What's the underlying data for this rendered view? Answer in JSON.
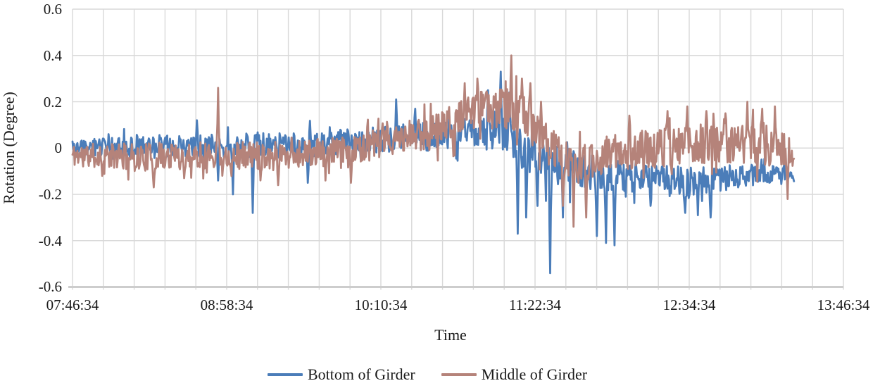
{
  "figure": {
    "background": "#ffffff",
    "text_color": "#1a1a1a",
    "grid_color": "#d9d9d9",
    "axis_line_color": "#cdcdcd"
  },
  "chart_data": {
    "type": "line",
    "title": "",
    "xlabel": "Time",
    "ylabel": "Rotation (Degree)",
    "x_tick_labels": [
      "07:46:34",
      "08:58:34",
      "10:10:34",
      "11:22:34",
      "12:34:34",
      "13:46:34"
    ],
    "y_tick_labels": [
      "0.6",
      "0.4",
      "0.2",
      "0",
      "-0.2",
      "-0.4",
      "-0.6"
    ],
    "y_tick_values": [
      0.6,
      0.4,
      0.2,
      0,
      -0.2,
      -0.4,
      -0.6
    ],
    "ylim": [
      -0.6,
      0.6
    ],
    "x_axis": {
      "start": "07:46:34",
      "end": "13:46:34",
      "span_minutes": 360,
      "major_tick_minutes": 72,
      "minor_gridline_minutes": 14.4,
      "grid": "both-axes, light gray minor vertical gridlines every 14.4 min, horizontal every 0.2 deg"
    },
    "data_span_minutes": 337,
    "data_end_time_approx": "13:23:34",
    "legend": {
      "position": "bottom-center",
      "entries": [
        {
          "label": "Bottom of Girder",
          "color": "#4b7db9"
        },
        {
          "label": "Middle of Girder",
          "color": "#b5837a"
        }
      ]
    },
    "series_encoding_note": "Noisy ~1 Hz sensor traces approximated as: trend = [minutes_after_07:46:34, mean_degrees, noise_half_amplitude_degrees]; spikes = [minutes_after_07:46:34, extreme_value_degrees]. Values read from plot.",
    "series": [
      {
        "name": "Bottom of Girder",
        "color": "#4b7db9",
        "noise_seed": 3,
        "trend": [
          [
            0,
            0.0,
            0.035
          ],
          [
            30,
            0.005,
            0.045
          ],
          [
            60,
            0.01,
            0.05
          ],
          [
            90,
            0.01,
            0.055
          ],
          [
            120,
            0.02,
            0.055
          ],
          [
            150,
            0.04,
            0.06
          ],
          [
            180,
            0.06,
            0.065
          ],
          [
            200,
            0.07,
            0.08
          ],
          [
            210,
            0.0,
            0.09
          ],
          [
            222,
            -0.07,
            0.09
          ],
          [
            240,
            -0.1,
            0.08
          ],
          [
            262,
            -0.13,
            0.06
          ],
          [
            290,
            -0.15,
            0.07
          ],
          [
            312,
            -0.12,
            0.05
          ],
          [
            337,
            -0.11,
            0.035
          ]
        ],
        "spikes": [
          [
            58,
            0.12
          ],
          [
            68,
            -0.14
          ],
          [
            75,
            -0.2
          ],
          [
            84,
            -0.28
          ],
          [
            110,
            -0.15
          ],
          [
            151,
            0.21
          ],
          [
            160,
            0.17
          ],
          [
            176,
            0.15
          ],
          [
            194,
            0.25
          ],
          [
            200,
            0.33
          ],
          [
            204,
            0.24
          ],
          [
            208,
            -0.37
          ],
          [
            212,
            -0.3
          ],
          [
            217,
            -0.25
          ],
          [
            223,
            -0.54
          ],
          [
            229,
            -0.3
          ],
          [
            245,
            -0.38
          ],
          [
            249,
            -0.41
          ],
          [
            253,
            -0.42
          ],
          [
            270,
            -0.25
          ],
          [
            286,
            -0.28
          ],
          [
            292,
            -0.29
          ],
          [
            298,
            -0.3
          ]
        ]
      },
      {
        "name": "Middle of Girder",
        "color": "#b5837a",
        "noise_seed": 11,
        "trend": [
          [
            0,
            -0.03,
            0.05
          ],
          [
            30,
            -0.04,
            0.06
          ],
          [
            60,
            -0.03,
            0.06
          ],
          [
            95,
            -0.03,
            0.06
          ],
          [
            125,
            -0.015,
            0.06
          ],
          [
            155,
            0.04,
            0.07
          ],
          [
            175,
            0.1,
            0.08
          ],
          [
            192,
            0.17,
            0.08
          ],
          [
            206,
            0.17,
            0.1
          ],
          [
            215,
            0.1,
            0.09
          ],
          [
            224,
            0.0,
            0.08
          ],
          [
            235,
            -0.08,
            0.08
          ],
          [
            252,
            -0.02,
            0.08
          ],
          [
            275,
            0.0,
            0.085
          ],
          [
            300,
            0.02,
            0.09
          ],
          [
            320,
            0.02,
            0.09
          ],
          [
            333,
            -0.01,
            0.08
          ],
          [
            337,
            -0.03,
            0.05
          ]
        ],
        "spikes": [
          [
            14,
            -0.12
          ],
          [
            38,
            -0.17
          ],
          [
            52,
            -0.13
          ],
          [
            68,
            0.26
          ],
          [
            96,
            -0.16
          ],
          [
            118,
            -0.14
          ],
          [
            130,
            -0.15
          ],
          [
            183,
            0.28
          ],
          [
            189,
            0.3
          ],
          [
            205,
            0.4
          ],
          [
            210,
            0.3
          ],
          [
            214,
            0.28
          ],
          [
            229,
            -0.25
          ],
          [
            234,
            -0.34
          ],
          [
            240,
            -0.3
          ],
          [
            260,
            0.14
          ],
          [
            278,
            0.16
          ],
          [
            287,
            0.18
          ],
          [
            296,
            0.16
          ],
          [
            305,
            0.15
          ],
          [
            315,
            0.2
          ],
          [
            322,
            0.17
          ],
          [
            328,
            0.18
          ],
          [
            334,
            -0.22
          ]
        ]
      }
    ]
  }
}
